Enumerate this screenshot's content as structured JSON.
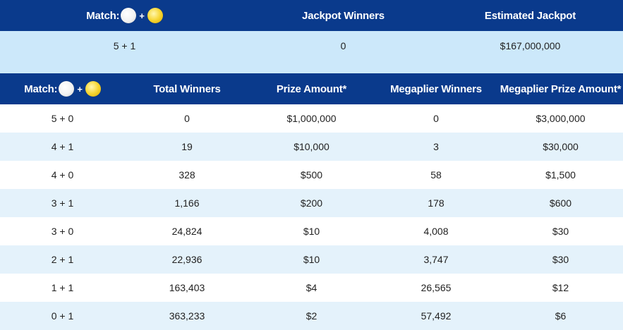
{
  "jackpot_header": {
    "match_label": "Match:",
    "plus": "+",
    "winners_label": "Jackpot Winners",
    "estimated_label": "Estimated Jackpot"
  },
  "jackpot_row": {
    "match": "5 + 1",
    "winners": "0",
    "estimated": "$167,000,000"
  },
  "prize_header": {
    "match_label": "Match:",
    "plus": "+",
    "total_winners": "Total Winners",
    "prize_amount": "Prize Amount*",
    "megaplier_winners": "Megaplier Winners",
    "megaplier_prize": "Megaplier Prize Amount*"
  },
  "rows": [
    {
      "match": "5 + 0",
      "total": "0",
      "prize": "$1,000,000",
      "mwinners": "0",
      "mprize": "$3,000,000"
    },
    {
      "match": "4 + 1",
      "total": "19",
      "prize": "$10,000",
      "mwinners": "3",
      "mprize": "$30,000"
    },
    {
      "match": "4 + 0",
      "total": "328",
      "prize": "$500",
      "mwinners": "58",
      "mprize": "$1,500"
    },
    {
      "match": "3 + 1",
      "total": "1,166",
      "prize": "$200",
      "mwinners": "178",
      "mprize": "$600"
    },
    {
      "match": "3 + 0",
      "total": "24,824",
      "prize": "$10",
      "mwinners": "4,008",
      "mprize": "$30"
    },
    {
      "match": "2 + 1",
      "total": "22,936",
      "prize": "$10",
      "mwinners": "3,747",
      "mprize": "$30"
    },
    {
      "match": "1 + 1",
      "total": "163,403",
      "prize": "$4",
      "mwinners": "26,565",
      "mprize": "$12"
    },
    {
      "match": "0 + 1",
      "total": "363,233",
      "prize": "$2",
      "mwinners": "57,492",
      "mprize": "$6"
    }
  ],
  "icons": {
    "white_ball": "white-ball-icon",
    "gold_ball": "gold-ball-icon"
  },
  "colors": {
    "header_blue": "#0a3a8c",
    "band_blue": "#cce8fa",
    "stripe_blue": "#e4f2fb",
    "gold_ball": "#f7d633"
  }
}
